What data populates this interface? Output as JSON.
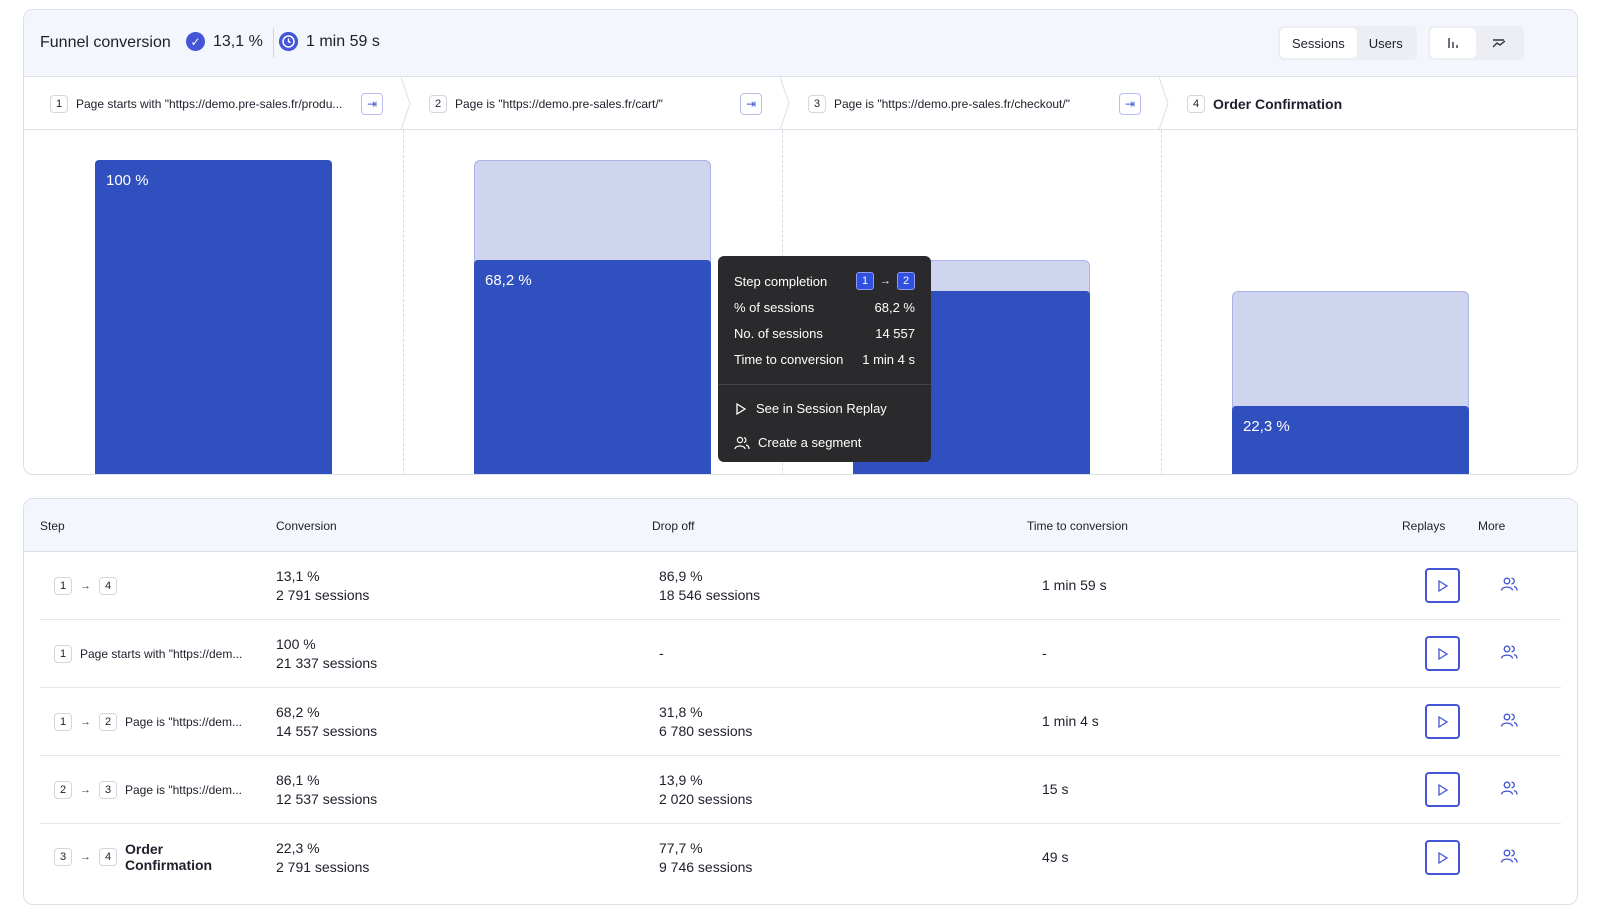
{
  "header": {
    "title": "Funnel conversion",
    "conversion": "13,1 %",
    "time": "1 min 59 s",
    "toggle": [
      "Sessions",
      "Users"
    ],
    "active_toggle": "Sessions",
    "view_icons": [
      "bar-chart-icon",
      "trend-icon"
    ]
  },
  "steps": [
    {
      "num": "1",
      "label": "Page starts with \"https://demo.pre-sales.fr/produ..."
    },
    {
      "num": "2",
      "label": "Page is \"https://demo.pre-sales.fr/cart/\""
    },
    {
      "num": "3",
      "label": "Page is \"https://demo.pre-sales.fr/checkout/\""
    },
    {
      "num": "4",
      "label": "Order Confirmation"
    }
  ],
  "chart_data": {
    "type": "bar",
    "categories": [
      "1",
      "2",
      "3",
      "4"
    ],
    "series": [
      {
        "values": [
          100,
          68.2,
          58.7,
          22.3
        ]
      },
      {
        "values": [
          100,
          100,
          68.2,
          58.7
        ]
      }
    ],
    "labels": [
      "100 %",
      "68,2 %",
      "",
      "22,3 %"
    ],
    "ylim": [
      0,
      100
    ]
  },
  "tooltip": {
    "title": "Step completion",
    "from": "1",
    "to": "2",
    "rows": [
      {
        "label": "% of sessions",
        "value": "68,2 %"
      },
      {
        "label": "No. of sessions",
        "value": "14 557"
      },
      {
        "label": "Time to conversion",
        "value": "1 min 4 s"
      }
    ],
    "actions": [
      "See in Session Replay",
      "Create a segment"
    ]
  },
  "table": {
    "headers": [
      "Step",
      "Conversion",
      "Drop off",
      "Time to conversion",
      "Replays",
      "More"
    ],
    "rows": [
      {
        "steps": [
          "1",
          "4"
        ],
        "label": "",
        "conv": "13,1 %",
        "conv_sessions": "2 791 sessions",
        "drop": "86,9 %",
        "drop_sessions": "18 546 sessions",
        "time": "1 min 59 s"
      },
      {
        "steps": [
          "1"
        ],
        "label": "Page starts with \"https://dem...",
        "conv": "100 %",
        "conv_sessions": "21 337 sessions",
        "drop": "-",
        "drop_sessions": "",
        "time": "-"
      },
      {
        "steps": [
          "1",
          "2"
        ],
        "label": "Page is \"https://dem...",
        "conv": "68,2 %",
        "conv_sessions": "14 557 sessions",
        "drop": "31,8 %",
        "drop_sessions": "6 780 sessions",
        "time": "1 min 4 s"
      },
      {
        "steps": [
          "2",
          "3"
        ],
        "label": "Page is \"https://dem...",
        "conv": "86,1 %",
        "conv_sessions": "12 537 sessions",
        "drop": "13,9 %",
        "drop_sessions": "2 020 sessions",
        "time": "15 s"
      },
      {
        "steps": [
          "3",
          "4"
        ],
        "label": "Order Confirmation",
        "conv": "22,3 %",
        "conv_sessions": "2 791 sessions",
        "drop": "77,7 %",
        "drop_sessions": "9 746 sessions",
        "time": "49 s"
      }
    ]
  }
}
